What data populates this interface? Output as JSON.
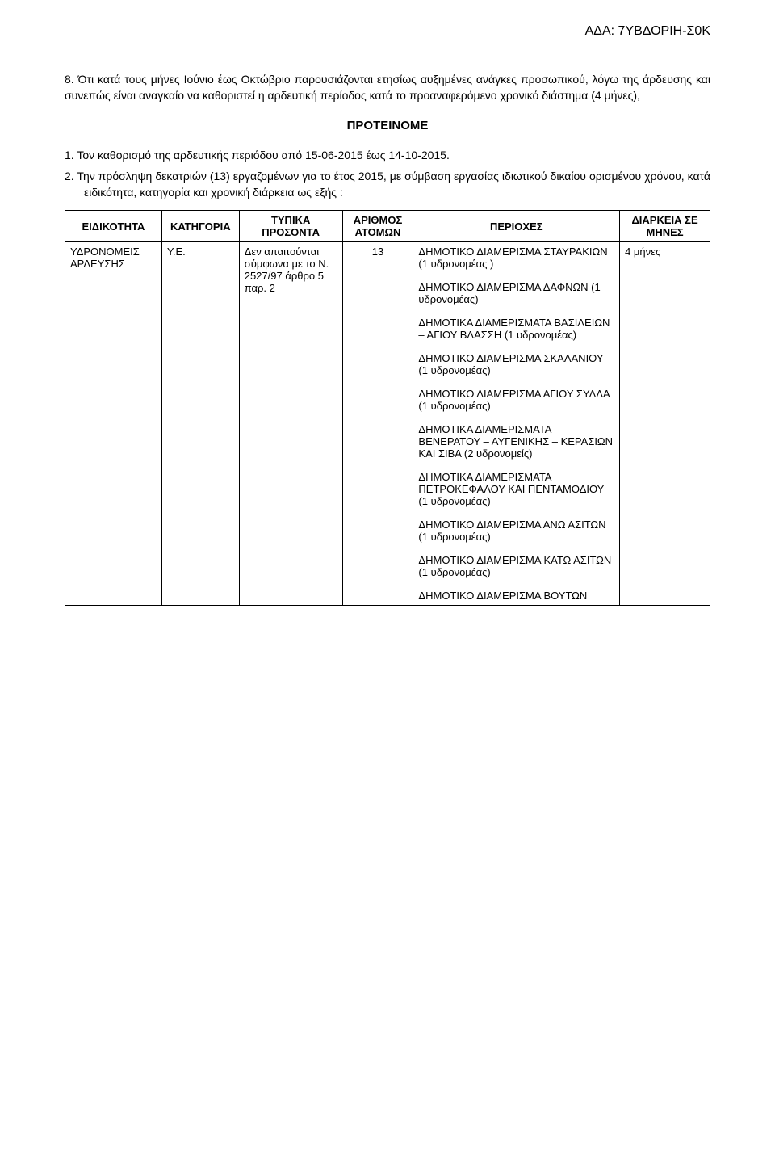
{
  "ada_header": "ΑΔΑ: 7ΥΒΔΟΡΙΗ-Σ0Κ",
  "paragraph_8": "8. Ότι κατά τους μήνες Ιούνιο έως Οκτώβριο παρουσιάζονται ετησίως αυξημένες ανάγκες προσωπικού, λόγω της άρδευσης και συνεπώς είναι αναγκαίο να καθοριστεί η αρδευτική περίοδος κατά το προαναφερόμενο χρονικό διάστημα (4 μήνες),",
  "proteinome": "ΠΡΟΤΕΙΝΟΜΕ",
  "list_item_1": "1.  Τον καθορισμό της αρδευτικής περιόδου από 15-06-2015 έως 14-10-2015.",
  "list_item_2": "2.  Την πρόσληψη δεκατριών (13) εργαζομένων για το έτος 2015, με σύμβαση εργασίας ιδιωτικού δικαίου ορισμένου χρόνου, κατά ειδικότητα, κατηγορία και χρονική διάρκεια ως εξής :",
  "table": {
    "headers": {
      "eidikotita": "ΕΙΔΙΚΟΤΗΤΑ",
      "katigoria": "ΚΑΤΗΓΟΡΙΑ",
      "typika": "ΤΥΠΙΚΑ ΠΡΟΣΟΝΤΑ",
      "arithmos": "ΑΡΙΘΜΟΣ ΑΤΟΜΩΝ",
      "periohes": "ΠΕΡΙΟΧΕΣ",
      "diarkeia": "ΔΙΑΡΚΕΙΑ ΣΕ ΜΗΝΕΣ"
    },
    "row": {
      "eidikotita": "ΥΔΡΟΝΟΜΕΙΣ ΑΡΔΕΥΣΗΣ",
      "katigoria": "Υ.Ε.",
      "typika": "Δεν απαιτούνται σύμφωνα με το Ν. 2527/97 άρθρο 5 παρ. 2",
      "arithmos": "13",
      "diarkeia": "4 μήνες",
      "periohes_blocks": [
        "ΔΗΜΟΤΙΚΟ ΔΙΑΜΕΡΙΣΜΑ ΣΤΑΥΡΑΚΙΩΝ (1 υδρονομέας )",
        "ΔΗΜΟΤΙΚΟ ΔΙΑΜΕΡΙΣΜΑ ΔΑΦΝΩΝ (1 υδρονομέας)",
        "ΔΗΜΟΤΙΚΑ ΔΙΑΜΕΡΙΣΜΑΤΑ ΒΑΣΙΛΕΙΩΝ – ΑΓΙΟΥ ΒΛΑΣΣΗ (1 υδρονομέας)",
        "ΔΗΜΟΤΙΚΟ ΔΙΑΜΕΡΙΣΜΑ ΣΚΑΛΑΝΙΟΥ (1 υδρονομέας)",
        "ΔΗΜΟΤΙΚΟ ΔΙΑΜΕΡΙΣΜΑ ΑΓΙΟΥ ΣΥΛΛΑ (1 υδρονομέας)",
        "ΔΗΜΟΤΙΚΑ ΔΙΑΜΕΡΙΣΜΑΤΑ ΒΕΝΕΡΑΤΟΥ – ΑΥΓΕΝΙΚΗΣ – ΚΕΡΑΣΙΩΝ ΚΑΙ ΣΙΒΑ (2 υδρονομείς)",
        "ΔΗΜΟΤΙΚΑ ΔΙΑΜΕΡΙΣΜΑΤΑ ΠΕΤΡΟΚΕΦΑΛΟΥ ΚΑΙ ΠΕΝΤΑΜΟΔΙΟΥ (1 υδρονομέας)",
        "ΔΗΜΟΤΙΚΟ ΔΙΑΜΕΡΙΣΜΑ ΑΝΩ ΑΣΙΤΩΝ (1 υδρονομέας)",
        "ΔΗΜΟΤΙΚΟ ΔΙΑΜΕΡΙΣΜΑ ΚΑΤΩ ΑΣΙΤΩΝ (1 υδρονομέας)",
        "ΔΗΜΟΤΙΚΟ ΔΙΑΜΕΡΙΣΜΑ ΒΟΥΤΩΝ"
      ]
    }
  }
}
